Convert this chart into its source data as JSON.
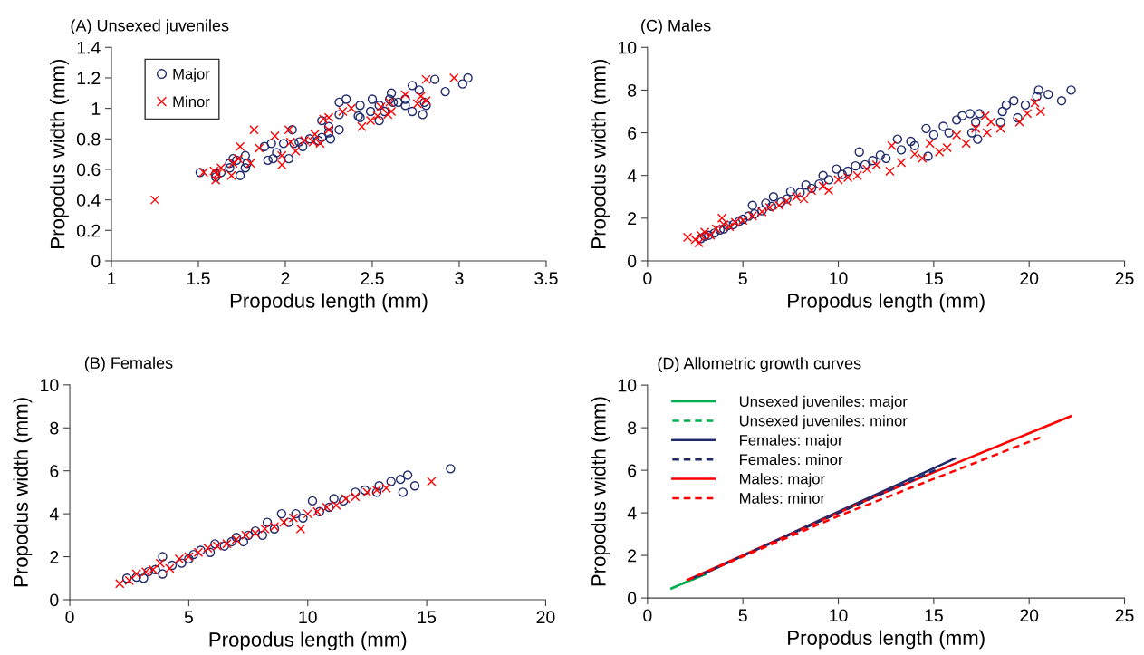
{
  "chart_data": [
    {
      "type": "scatter",
      "title": "(A) Unsexed juveniles",
      "xlabel": "Propodus length (mm)",
      "ylabel": "Propodus width (mm)",
      "xlim": [
        1,
        3.5
      ],
      "xticks": [
        1,
        1.5,
        2,
        2.5,
        3,
        3.5
      ],
      "ylim": [
        0,
        1.4
      ],
      "yticks": [
        0,
        0.2,
        0.4,
        0.6,
        0.8,
        1,
        1.2,
        1.4
      ],
      "grid": false,
      "legend": "top left",
      "series": [
        {
          "name": "Major",
          "color": "#1f2a6b",
          "marker": "circle",
          "x": [
            1.51,
            1.6,
            1.6,
            1.63,
            1.68,
            1.68,
            1.7,
            1.72,
            1.74,
            1.77,
            1.77,
            1.78,
            1.88,
            1.9,
            1.92,
            1.93,
            1.95,
            1.99,
            2.02,
            2.04,
            2.05,
            2.08,
            2.1,
            2.14,
            2.19,
            2.21,
            2.21,
            2.25,
            2.25,
            2.26,
            2.31,
            2.31,
            2.31,
            2.35,
            2.42,
            2.43,
            2.43,
            2.49,
            2.5,
            2.54,
            2.54,
            2.57,
            2.6,
            2.61,
            2.62,
            2.65,
            2.69,
            2.69,
            2.73,
            2.73,
            2.77,
            2.79,
            2.8,
            2.81,
            2.86,
            2.92,
            3.02,
            3.05
          ],
          "values": [
            0.58,
            0.55,
            0.57,
            0.58,
            0.61,
            0.64,
            0.67,
            0.66,
            0.56,
            0.61,
            0.69,
            0.64,
            0.75,
            0.66,
            0.77,
            0.67,
            0.71,
            0.77,
            0.67,
            0.86,
            0.77,
            0.78,
            0.75,
            0.8,
            0.79,
            0.81,
            0.92,
            0.88,
            0.84,
            0.8,
            0.86,
            0.96,
            1.04,
            1.06,
            0.95,
            0.94,
            1.02,
            0.98,
            1.06,
            0.92,
            1.02,
            0.98,
            1.06,
            1.1,
            1.04,
            1.04,
            1.02,
            1.06,
            0.98,
            1.15,
            1.12,
            0.96,
            1.04,
            1.02,
            1.19,
            1.11,
            1.16,
            1.2
          ]
        },
        {
          "name": "Minor",
          "color": "#ff0000",
          "marker": "cross",
          "x": [
            1.25,
            1.53,
            1.59,
            1.6,
            1.61,
            1.63,
            1.69,
            1.7,
            1.73,
            1.74,
            1.8,
            1.82,
            1.85,
            1.94,
            1.98,
            1.98,
            2.02,
            2.03,
            2.06,
            2.11,
            2.16,
            2.17,
            2.2,
            2.22,
            2.25,
            2.25,
            2.33,
            2.38,
            2.44,
            2.49,
            2.53,
            2.55,
            2.59,
            2.61,
            2.6,
            2.69,
            2.76,
            2.78,
            2.81,
            2.81,
            2.97
          ],
          "values": [
            0.4,
            0.58,
            0.59,
            0.53,
            0.57,
            0.61,
            0.56,
            0.64,
            0.67,
            0.75,
            0.64,
            0.86,
            0.74,
            0.82,
            0.63,
            0.69,
            0.86,
            0.78,
            0.72,
            0.79,
            0.78,
            0.83,
            0.77,
            0.93,
            0.94,
            0.86,
            0.98,
            1.0,
            0.88,
            0.92,
            0.95,
            1.01,
            0.96,
            0.98,
            1.04,
            1.09,
            1.03,
            1.08,
            1.19,
            1.05,
            1.2
          ]
        }
      ]
    },
    {
      "type": "scatter",
      "title": "(C) Males",
      "xlabel": "Propodus length (mm)",
      "ylabel": "Propodus width (mm)",
      "xlim": [
        0,
        25
      ],
      "xticks": [
        0,
        5,
        10,
        15,
        20,
        25
      ],
      "ylim": [
        0,
        10
      ],
      "yticks": [
        0,
        2,
        4,
        6,
        8,
        10
      ],
      "grid": false,
      "series": [
        {
          "color": "#1f2a6b",
          "marker": "circle",
          "x": [
            2.8,
            3.0,
            3.2,
            3.5,
            3.8,
            4.0,
            4.2,
            4.5,
            4.8,
            5.0,
            5.3,
            5.5,
            5.6,
            6.0,
            6.2,
            6.5,
            6.6,
            7.0,
            7.3,
            7.5,
            8.0,
            8.3,
            8.6,
            9.0,
            9.2,
            9.5,
            9.9,
            10.2,
            10.5,
            10.9,
            11.1,
            11.4,
            11.8,
            12.2,
            12.5,
            13.1,
            13.3,
            13.8,
            14.0,
            14.6,
            14.7,
            15.0,
            15.5,
            15.8,
            16.2,
            16.5,
            16.9,
            17.0,
            17.2,
            17.3,
            17.4,
            18.5,
            18.6,
            18.8,
            19.2,
            19.4,
            19.8,
            20.4,
            20.5,
            21.0,
            21.7,
            22.2
          ],
          "values": [
            1.05,
            1.15,
            1.2,
            1.3,
            1.45,
            1.5,
            1.65,
            1.7,
            1.85,
            1.95,
            2.1,
            2.6,
            2.2,
            2.35,
            2.7,
            2.55,
            3.0,
            2.75,
            2.9,
            3.25,
            3.2,
            3.55,
            3.4,
            3.6,
            4.0,
            3.8,
            4.3,
            4.05,
            4.2,
            4.45,
            5.1,
            4.5,
            4.7,
            4.95,
            4.8,
            5.7,
            5.2,
            5.6,
            5.4,
            6.2,
            4.9,
            5.9,
            6.3,
            6.0,
            6.6,
            6.8,
            6.9,
            6.0,
            6.5,
            5.7,
            6.9,
            6.5,
            7.0,
            7.3,
            7.5,
            6.7,
            7.3,
            7.7,
            8.0,
            7.8,
            7.5,
            8.0
          ]
        },
        {
          "color": "#ff0000",
          "marker": "cross",
          "x": [
            2.1,
            2.5,
            2.7,
            2.8,
            3.0,
            3.3,
            3.6,
            3.9,
            4.0,
            4.3,
            4.6,
            5.0,
            5.5,
            6.0,
            6.4,
            6.9,
            7.3,
            7.8,
            8.2,
            8.6,
            9.2,
            9.5,
            10.0,
            10.5,
            11.0,
            11.5,
            12.0,
            12.7,
            12.8,
            13.3,
            14.0,
            14.4,
            14.8,
            15.3,
            15.7,
            16.2,
            16.7,
            17.2,
            17.7,
            17.8,
            18.0,
            18.5,
            19.5,
            19.9,
            20.3,
            20.6
          ],
          "values": [
            1.1,
            1.0,
            0.85,
            1.2,
            1.35,
            1.2,
            1.5,
            2.0,
            1.7,
            1.6,
            1.8,
            1.9,
            2.1,
            2.3,
            2.5,
            2.6,
            2.8,
            3.0,
            2.9,
            3.3,
            3.5,
            3.3,
            3.8,
            3.9,
            4.0,
            4.3,
            4.5,
            4.2,
            5.4,
            4.6,
            5.0,
            4.8,
            5.5,
            5.1,
            5.3,
            5.9,
            5.5,
            6.2,
            6.8,
            6.0,
            6.5,
            6.2,
            6.5,
            6.9,
            7.4,
            7.0
          ]
        }
      ]
    },
    {
      "type": "scatter",
      "title": "(B) Females",
      "xlabel": "Propodus length (mm)",
      "ylabel": "Propodus width (mm)",
      "xlim": [
        0,
        20
      ],
      "xticks": [
        0,
        5,
        10,
        15,
        20
      ],
      "ylim": [
        0,
        10
      ],
      "yticks": [
        0,
        2,
        4,
        6,
        8,
        10
      ],
      "grid": false,
      "series": [
        {
          "color": "#1f2a6b",
          "marker": "circle",
          "x": [
            2.4,
            2.8,
            3.1,
            3.3,
            3.6,
            3.9,
            3.9,
            4.3,
            4.7,
            5.0,
            5.2,
            5.5,
            5.9,
            6.1,
            6.5,
            6.8,
            7.0,
            7.3,
            7.5,
            7.8,
            8.1,
            8.3,
            8.6,
            8.9,
            9.2,
            9.5,
            9.8,
            10.2,
            10.5,
            10.9,
            11.1,
            11.5,
            12.0,
            12.4,
            12.9,
            13.0,
            13.5,
            13.9,
            14.0,
            14.2,
            14.5,
            16.0
          ],
          "values": [
            1.0,
            1.05,
            1.0,
            1.3,
            1.4,
            2.0,
            1.2,
            1.6,
            1.7,
            1.9,
            2.1,
            2.3,
            2.2,
            2.6,
            2.5,
            2.7,
            2.9,
            2.7,
            3.0,
            3.2,
            3.0,
            3.6,
            3.3,
            4.0,
            3.6,
            4.0,
            3.8,
            4.6,
            4.1,
            4.3,
            4.7,
            4.6,
            5.0,
            5.1,
            5.0,
            5.3,
            5.5,
            5.6,
            5.0,
            5.8,
            5.3,
            6.1
          ]
        },
        {
          "color": "#ff0000",
          "marker": "cross",
          "x": [
            2.1,
            2.5,
            2.8,
            3.2,
            3.5,
            3.8,
            4.2,
            4.6,
            5.0,
            5.4,
            5.8,
            6.2,
            6.6,
            7.0,
            7.4,
            7.8,
            8.2,
            8.6,
            9.0,
            9.4,
            9.7,
            10.0,
            10.4,
            10.8,
            11.2,
            11.6,
            12.0,
            12.5,
            12.9,
            13.3,
            15.2
          ],
          "values": [
            0.75,
            0.9,
            1.2,
            1.3,
            1.4,
            1.7,
            1.45,
            1.9,
            2.0,
            2.2,
            2.4,
            2.5,
            2.6,
            2.8,
            3.0,
            3.1,
            3.3,
            3.4,
            3.6,
            3.8,
            3.3,
            4.0,
            4.1,
            4.3,
            4.4,
            4.7,
            4.8,
            5.0,
            5.1,
            5.2,
            5.5
          ]
        }
      ]
    },
    {
      "type": "line",
      "title": "(D) Allometric growth curves",
      "xlabel": "Propodus length (mm)",
      "ylabel": "Propodus width (mm)",
      "xlim": [
        0,
        25
      ],
      "xticks": [
        0,
        5,
        10,
        15,
        20,
        25
      ],
      "ylim": [
        0,
        10
      ],
      "yticks": [
        0,
        2,
        4,
        6,
        8,
        10
      ],
      "grid": false,
      "legend": "top left",
      "marker": "none",
      "series": [
        {
          "name": "Unsexed juveniles: major",
          "color": "#00b050",
          "line_style": "solid",
          "x": [
            1.25,
            2,
            3.05
          ],
          "values": [
            0.45,
            0.74,
            1.12
          ]
        },
        {
          "name": "Unsexed juveniles: minor",
          "color": "#00b050",
          "line_style": "dashed",
          "x": [
            1.25,
            2,
            2.97
          ],
          "values": [
            0.45,
            0.74,
            1.1
          ]
        },
        {
          "name": "Females: major",
          "color": "#1f2a6b",
          "line_style": "solid",
          "x": [
            2.4,
            9,
            16.1
          ],
          "values": [
            0.9,
            3.65,
            6.55
          ]
        },
        {
          "name": "Females: minor",
          "color": "#1f2a6b",
          "line_style": "dashed",
          "x": [
            2.3,
            9,
            15.2
          ],
          "values": [
            0.9,
            3.6,
            6.05
          ]
        },
        {
          "name": "Males: major",
          "color": "#ff0000",
          "line_style": "solid",
          "x": [
            2.1,
            12,
            22.2
          ],
          "values": [
            0.85,
            4.8,
            8.55
          ]
        },
        {
          "name": "Males: minor",
          "color": "#ff0000",
          "line_style": "dashed",
          "x": [
            2.1,
            10,
            20.6
          ],
          "values": [
            0.85,
            3.85,
            7.55
          ]
        }
      ]
    }
  ]
}
